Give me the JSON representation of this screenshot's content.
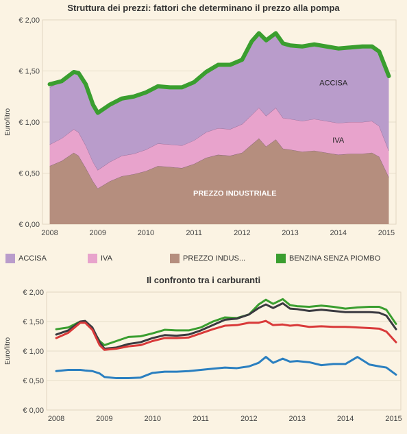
{
  "chart_data": [
    {
      "type": "area",
      "title": "Struttura dei prezzi: fattori che determinano il prezzo alla pompa",
      "ylabel": "Euro/litro",
      "ylim": [
        0,
        2.0
      ],
      "yticks": [
        "€ 0,00",
        "€ 0,50",
        "€ 1,00",
        "€ 1,50",
        "€ 2,00"
      ],
      "ytick_values": [
        0,
        0.5,
        1.0,
        1.5,
        2.0
      ],
      "xticks": [
        "2008",
        "2009",
        "2010",
        "2011",
        "2012",
        "2013",
        "2014",
        "2015"
      ],
      "xtick_values": [
        2008,
        2009,
        2010,
        2011,
        2012,
        2013,
        2014,
        2015
      ],
      "xlim": [
        2007.85,
        2015.2
      ],
      "x": [
        2008.0,
        2008.25,
        2008.5,
        2008.6,
        2008.75,
        2008.9,
        2009.0,
        2009.25,
        2009.5,
        2009.75,
        2010.0,
        2010.25,
        2010.5,
        2010.75,
        2011.0,
        2011.25,
        2011.5,
        2011.75,
        2012.0,
        2012.2,
        2012.35,
        2012.5,
        2012.7,
        2012.85,
        2013.0,
        2013.25,
        2013.5,
        2013.75,
        2014.0,
        2014.25,
        2014.5,
        2014.7,
        2014.85,
        2015.05
      ],
      "series": [
        {
          "name": "PREZZO INDUSTRIALE",
          "color": "#b58e7e",
          "values": [
            0.57,
            0.62,
            0.7,
            0.67,
            0.55,
            0.42,
            0.35,
            0.42,
            0.47,
            0.49,
            0.52,
            0.57,
            0.56,
            0.55,
            0.59,
            0.65,
            0.68,
            0.67,
            0.7,
            0.78,
            0.84,
            0.76,
            0.83,
            0.74,
            0.73,
            0.71,
            0.72,
            0.7,
            0.68,
            0.69,
            0.69,
            0.7,
            0.66,
            0.46
          ]
        },
        {
          "name": "IVA",
          "color": "#e8a3cc",
          "values": [
            0.21,
            0.22,
            0.23,
            0.23,
            0.22,
            0.19,
            0.18,
            0.19,
            0.2,
            0.2,
            0.21,
            0.22,
            0.22,
            0.22,
            0.23,
            0.25,
            0.26,
            0.26,
            0.28,
            0.29,
            0.3,
            0.3,
            0.31,
            0.3,
            0.3,
            0.3,
            0.31,
            0.31,
            0.31,
            0.31,
            0.31,
            0.31,
            0.3,
            0.26
          ]
        },
        {
          "name": "ACCISA",
          "color": "#b99ccb",
          "values": [
            0.56,
            0.56,
            0.56,
            0.58,
            0.6,
            0.56,
            0.56,
            0.56,
            0.56,
            0.56,
            0.56,
            0.56,
            0.56,
            0.57,
            0.57,
            0.59,
            0.62,
            0.63,
            0.63,
            0.72,
            0.73,
            0.74,
            0.73,
            0.73,
            0.72,
            0.73,
            0.73,
            0.73,
            0.73,
            0.73,
            0.74,
            0.73,
            0.73,
            0.73
          ]
        }
      ],
      "line": {
        "name": "BENZINA SENZA PIOMBO",
        "color": "#3a9e2f",
        "values": [
          1.37,
          1.4,
          1.49,
          1.48,
          1.37,
          1.17,
          1.09,
          1.17,
          1.23,
          1.25,
          1.29,
          1.35,
          1.34,
          1.34,
          1.39,
          1.49,
          1.56,
          1.56,
          1.61,
          1.79,
          1.87,
          1.8,
          1.87,
          1.77,
          1.75,
          1.74,
          1.76,
          1.74,
          1.72,
          1.73,
          1.74,
          1.74,
          1.69,
          1.45
        ]
      },
      "annotations": [
        "ACCISA",
        "IVA",
        "PREZZO INDUSTRIALE"
      ]
    },
    {
      "type": "line",
      "title": "Il confronto tra i carburanti",
      "ylabel": "Euro/litro",
      "ylim": [
        0,
        2.0
      ],
      "yticks": [
        "€ 0,00",
        "€ 0,50",
        "€ 1,00",
        "€ 1,50",
        "€ 2,00"
      ],
      "ytick_values": [
        0,
        0.5,
        1.0,
        1.5,
        2.0
      ],
      "xticks": [
        "2008",
        "2009",
        "2010",
        "2011",
        "2012",
        "2013",
        "2014",
        "2015"
      ],
      "xtick_values": [
        2008,
        2009,
        2010,
        2011,
        2012,
        2013,
        2014,
        2015
      ],
      "xlim": [
        2007.8,
        2015.15
      ],
      "x": [
        2008.0,
        2008.25,
        2008.5,
        2008.6,
        2008.75,
        2008.9,
        2009.0,
        2009.25,
        2009.5,
        2009.75,
        2010.0,
        2010.25,
        2010.5,
        2010.75,
        2011.0,
        2011.25,
        2011.5,
        2011.75,
        2012.0,
        2012.2,
        2012.35,
        2012.5,
        2012.7,
        2012.85,
        2013.0,
        2013.25,
        2013.5,
        2013.75,
        2014.0,
        2014.25,
        2014.5,
        2014.7,
        2014.85,
        2015.05
      ],
      "series": [
        {
          "color": "#3a9e2f",
          "values": [
            1.37,
            1.4,
            1.5,
            1.5,
            1.37,
            1.17,
            1.1,
            1.17,
            1.24,
            1.25,
            1.3,
            1.36,
            1.35,
            1.35,
            1.4,
            1.5,
            1.57,
            1.56,
            1.62,
            1.79,
            1.87,
            1.8,
            1.88,
            1.78,
            1.76,
            1.75,
            1.77,
            1.75,
            1.72,
            1.74,
            1.75,
            1.75,
            1.7,
            1.46
          ]
        },
        {
          "color": "#3a3a40",
          "values": [
            1.28,
            1.35,
            1.5,
            1.51,
            1.4,
            1.15,
            1.04,
            1.06,
            1.12,
            1.15,
            1.22,
            1.27,
            1.26,
            1.28,
            1.35,
            1.44,
            1.53,
            1.55,
            1.62,
            1.73,
            1.79,
            1.73,
            1.81,
            1.72,
            1.71,
            1.68,
            1.7,
            1.68,
            1.66,
            1.66,
            1.66,
            1.65,
            1.6,
            1.37
          ]
        },
        {
          "color": "#d93a3a",
          "values": [
            1.22,
            1.31,
            1.48,
            1.48,
            1.36,
            1.1,
            1.02,
            1.04,
            1.08,
            1.1,
            1.17,
            1.22,
            1.22,
            1.23,
            1.3,
            1.37,
            1.43,
            1.44,
            1.48,
            1.48,
            1.51,
            1.44,
            1.45,
            1.43,
            1.44,
            1.41,
            1.42,
            1.41,
            1.41,
            1.4,
            1.39,
            1.38,
            1.33,
            1.15
          ]
        },
        {
          "color": "#2a7fc0",
          "values": [
            0.66,
            0.68,
            0.68,
            0.67,
            0.66,
            0.62,
            0.56,
            0.54,
            0.54,
            0.55,
            0.63,
            0.65,
            0.65,
            0.66,
            0.68,
            0.7,
            0.72,
            0.71,
            0.74,
            0.8,
            0.9,
            0.8,
            0.87,
            0.82,
            0.83,
            0.81,
            0.76,
            0.78,
            0.78,
            0.9,
            0.77,
            0.74,
            0.72,
            0.6
          ]
        }
      ]
    }
  ],
  "legend": [
    {
      "label": "ACCISA",
      "color": "#b99ccb"
    },
    {
      "label": "IVA",
      "color": "#e8a3cc"
    },
    {
      "label": "PREZZO INDUS...",
      "color": "#b58e7e"
    },
    {
      "label": "BENZINA SENZA PIOMBO",
      "color": "#3a9e2f"
    }
  ]
}
